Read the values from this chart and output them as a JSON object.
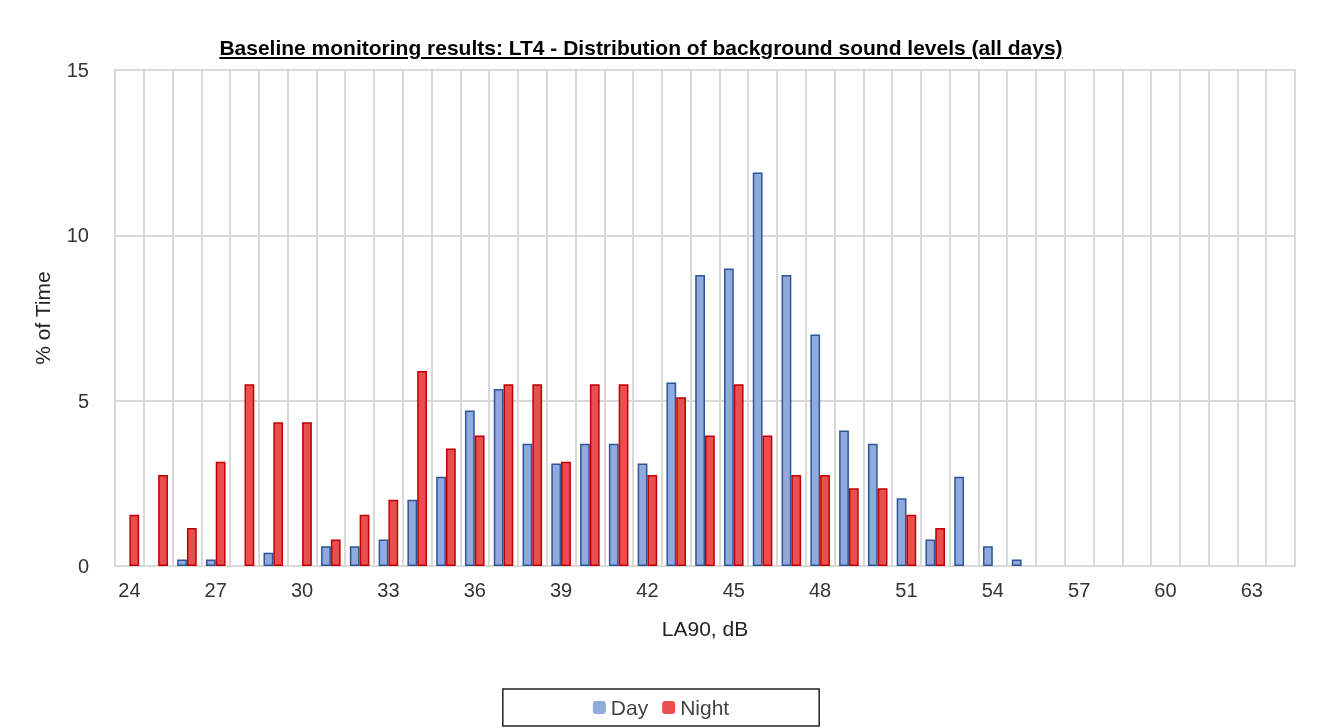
{
  "chart_data": {
    "type": "bar",
    "title": "Baseline monitoring results: LT4 - Distribution of background sound levels (all days)",
    "xlabel": "LA90, dB",
    "ylabel": "% of Time",
    "categories": [
      "24",
      null,
      null,
      "27",
      null,
      null,
      "30",
      null,
      null,
      "33",
      null,
      null,
      "36",
      null,
      null,
      "39",
      null,
      null,
      "42",
      null,
      null,
      "45",
      null,
      null,
      "48",
      null,
      null,
      "51",
      null,
      null,
      "54",
      null,
      null,
      "57",
      null,
      null,
      "60",
      null,
      null,
      "63",
      null
    ],
    "series": [
      {
        "name": "Day",
        "color": "#8faadc",
        "values": [
          0,
          0,
          0.2,
          0.2,
          0,
          0.4,
          0,
          0.6,
          0.6,
          0.8,
          2.0,
          2.7,
          4.7,
          5.35,
          3.7,
          3.1,
          3.7,
          3.7,
          3.1,
          5.55,
          8.8,
          9.0,
          11.9,
          8.8,
          7.0,
          4.1,
          3.7,
          2.05,
          0.8,
          2.7,
          0.6,
          0.2,
          0,
          0,
          0,
          0,
          0,
          0,
          0,
          0,
          0
        ]
      },
      {
        "name": "Night",
        "color": "#e85050",
        "values": [
          1.55,
          2.75,
          1.15,
          3.15,
          5.5,
          4.35,
          4.35,
          0.8,
          1.55,
          2.0,
          5.9,
          3.55,
          3.95,
          5.5,
          5.5,
          3.15,
          5.5,
          5.5,
          2.75,
          5.1,
          3.95,
          5.5,
          3.95,
          2.75,
          2.75,
          2.35,
          2.35,
          1.55,
          1.15,
          0,
          0,
          0,
          0,
          0,
          0,
          0,
          0,
          0,
          0,
          0,
          0
        ]
      }
    ],
    "ylim": [
      0,
      15
    ],
    "yticks": [
      0,
      5,
      10,
      15
    ],
    "grid": true,
    "legend": "bottom"
  }
}
